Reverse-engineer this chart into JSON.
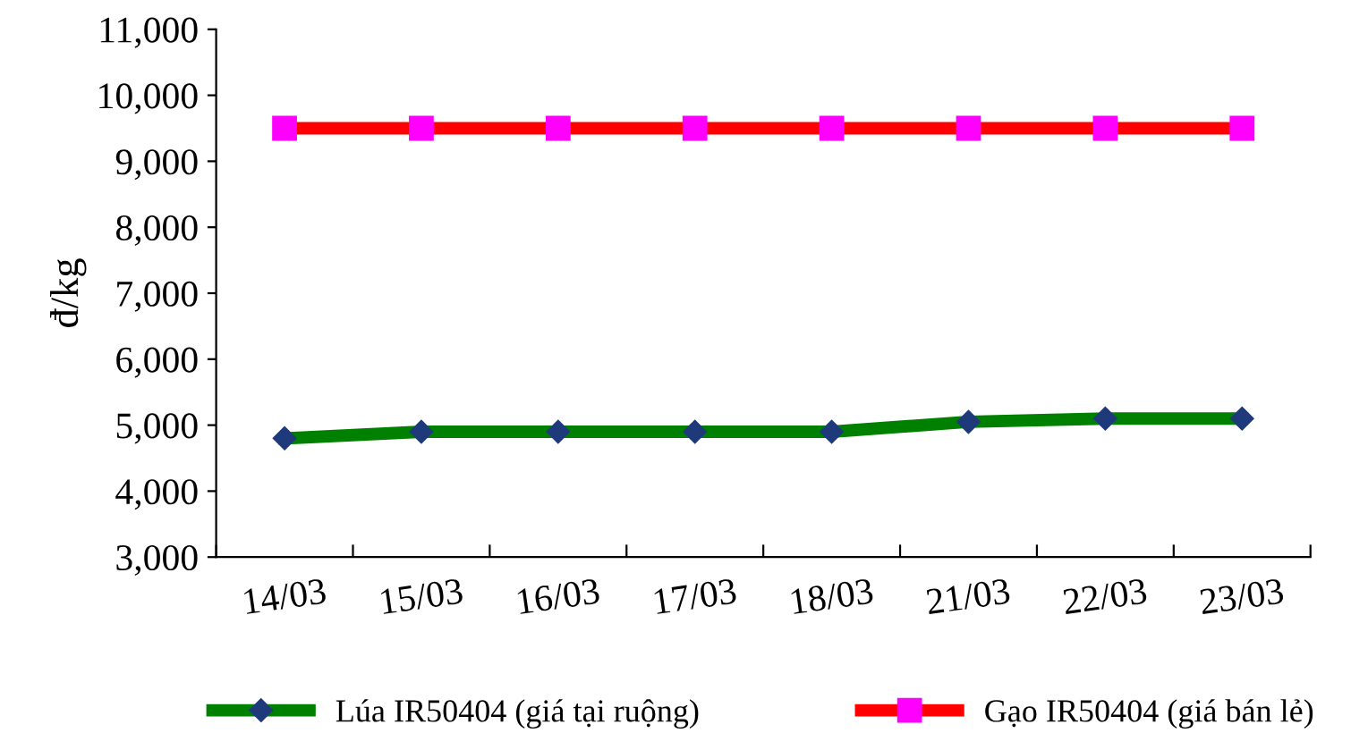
{
  "chart_data": {
    "type": "line",
    "ylabel": "đ/kg",
    "categories": [
      "14/03",
      "15/03",
      "16/03",
      "17/03",
      "18/03",
      "21/03",
      "22/03",
      "23/03"
    ],
    "series": [
      {
        "name": "Lúa IR50404 (giá tại ruộng)",
        "color": "#008000",
        "marker": "diamond",
        "values": [
          4800,
          4900,
          4900,
          4900,
          4900,
          5050,
          5100,
          5100
        ]
      },
      {
        "name": "Gạo IR50404 (giá bán lẻ)",
        "color": "#ff0000",
        "marker": "square",
        "values": [
          9500,
          9500,
          9500,
          9500,
          9500,
          9500,
          9500,
          9500
        ]
      }
    ],
    "ylim": [
      3000,
      11000
    ],
    "yticks": [
      {
        "value": 3000,
        "label": "3,000"
      },
      {
        "value": 4000,
        "label": "4,000"
      },
      {
        "value": 5000,
        "label": "5,000"
      },
      {
        "value": 6000,
        "label": "6,000"
      },
      {
        "value": 7000,
        "label": "7,000"
      },
      {
        "value": 8000,
        "label": "8,000"
      },
      {
        "value": 9000,
        "label": "9,000"
      },
      {
        "value": 10000,
        "label": "10,000"
      },
      {
        "value": 11000,
        "label": "11,000"
      }
    ],
    "grid": false,
    "legend": "bottom",
    "line_style": "solid"
  }
}
